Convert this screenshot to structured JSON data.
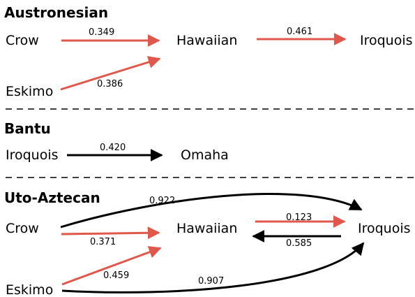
{
  "colors": {
    "red": "#e0574b",
    "black": "#000000"
  },
  "sections": [
    {
      "title": "Austronesian",
      "nodes": [
        "Crow",
        "Hawaiian",
        "Iroquois",
        "Eskimo"
      ],
      "edges": [
        {
          "from": "Crow",
          "to": "Hawaiian",
          "weight": "0.349",
          "color": "red"
        },
        {
          "from": "Eskimo",
          "to": "Hawaiian",
          "weight": "0.386",
          "color": "red"
        },
        {
          "from": "Hawaiian",
          "to": "Iroquois",
          "weight": "0.461",
          "color": "red"
        }
      ]
    },
    {
      "title": "Bantu",
      "nodes": [
        "Iroquois",
        "Omaha"
      ],
      "edges": [
        {
          "from": "Iroquois",
          "to": "Omaha",
          "weight": "0.420",
          "color": "black"
        }
      ]
    },
    {
      "title": "Uto-Aztecan",
      "nodes": [
        "Crow",
        "Hawaiian",
        "Iroquois",
        "Eskimo"
      ],
      "edges": [
        {
          "from": "Crow",
          "to": "Iroquois",
          "weight": "0.922",
          "color": "black"
        },
        {
          "from": "Crow",
          "to": "Hawaiian",
          "weight": "0.371",
          "color": "red"
        },
        {
          "from": "Hawaiian",
          "to": "Iroquois",
          "weight": "0.123",
          "color": "red"
        },
        {
          "from": "Iroquois",
          "to": "Hawaiian",
          "weight": "0.585",
          "color": "black"
        },
        {
          "from": "Eskimo",
          "to": "Hawaiian",
          "weight": "0.459",
          "color": "red"
        },
        {
          "from": "Eskimo",
          "to": "Iroquois",
          "weight": "0.907",
          "color": "black"
        }
      ]
    }
  ]
}
